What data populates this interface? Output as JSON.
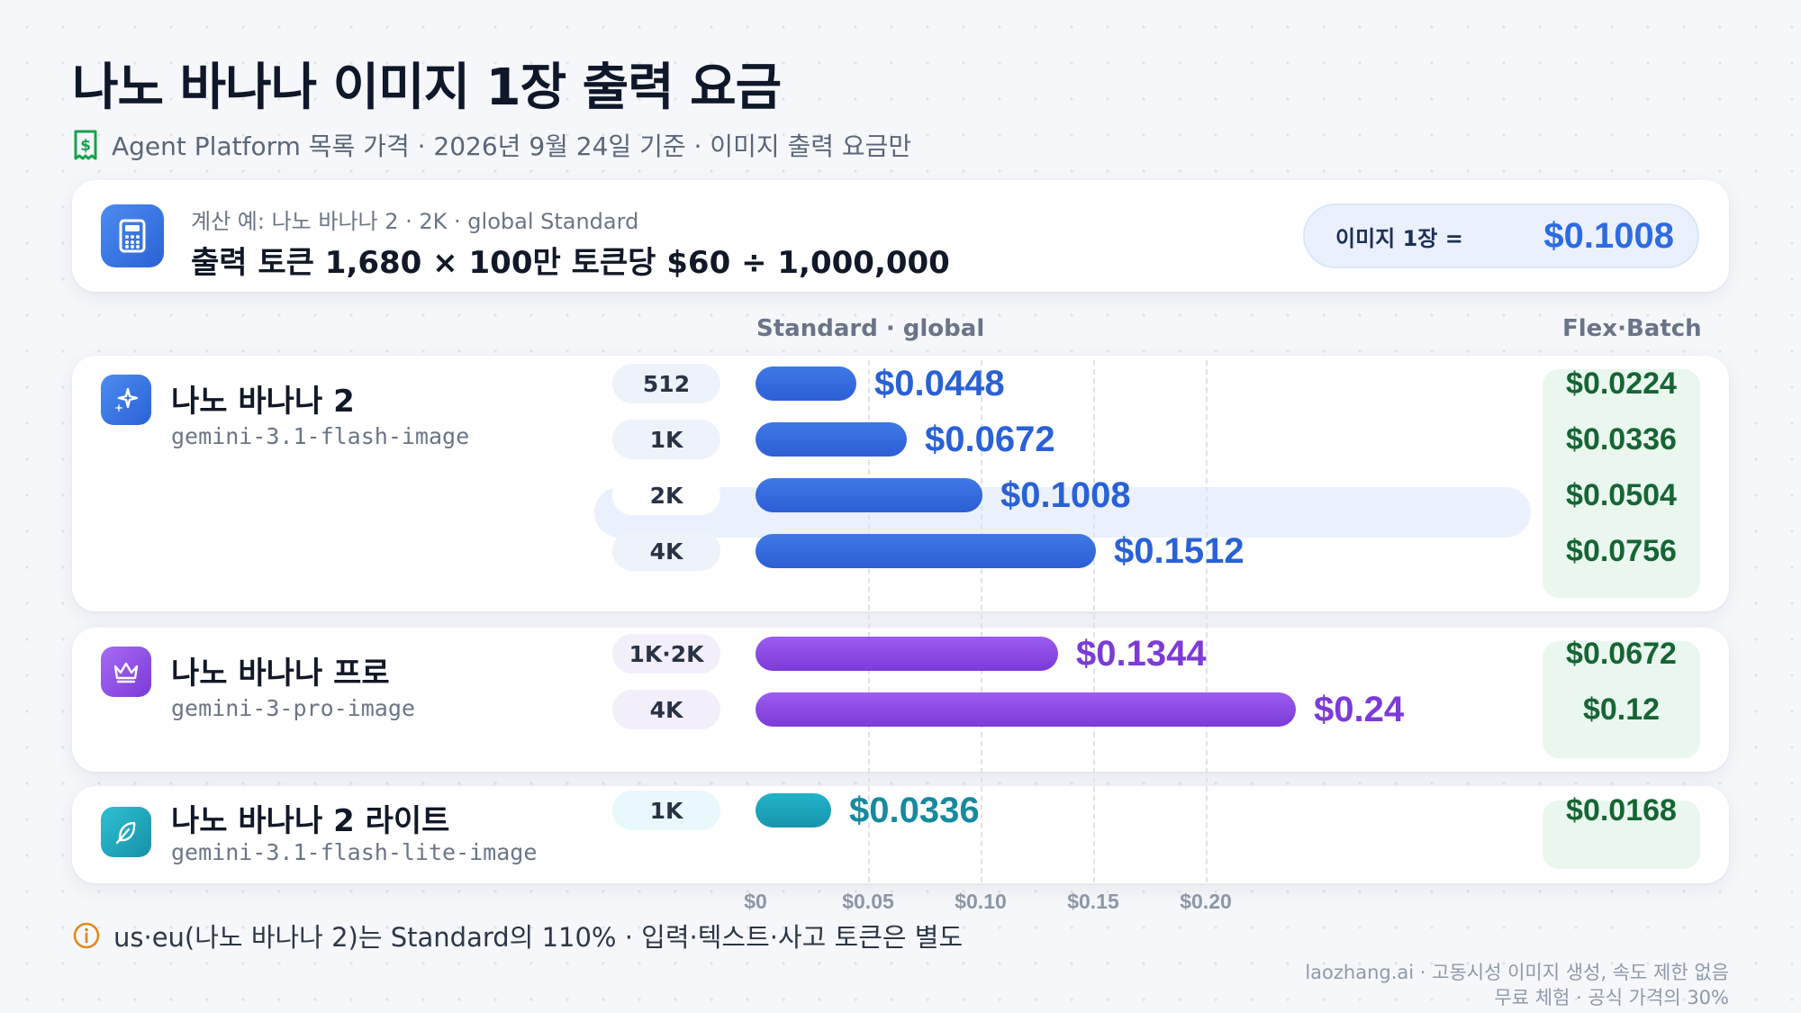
{
  "header": {
    "title": "나노 바나나 이미지 1장 출력 요금",
    "subtitle": "Agent Platform 목록 가격 · 2026년 9월 24일 기준 · 이미지 출력 요금만",
    "subtitle_icon": "receipt-dollar-icon"
  },
  "calc": {
    "icon": "calculator-icon",
    "label": "계산 예: 나노 바나나 2 · 2K · global Standard",
    "formula": "출력 토큰 1,680 × 100만 토큰당 $60 ÷ 1,000,000",
    "result_label": "이미지 1장 =",
    "result_value": "$0.1008"
  },
  "columns": {
    "standard": "Standard · global",
    "flex": "Flex·Batch"
  },
  "chart_data": {
    "type": "bar",
    "orientation": "horizontal",
    "xlim": [
      0,
      0.25
    ],
    "ticks": [
      {
        "value": 0,
        "label": "$0"
      },
      {
        "value": 0.05,
        "label": "$0.05"
      },
      {
        "value": 0.1,
        "label": "$0.10"
      },
      {
        "value": 0.15,
        "label": "$0.15"
      },
      {
        "value": 0.2,
        "label": "$0.20"
      }
    ],
    "grid": true,
    "models": [
      {
        "name": "나노 바나나 2",
        "id": "gemini-3.1-flash-image",
        "icon": "sparkles-icon",
        "color": "#3f78e6",
        "color2": "#2c5fd4",
        "label_color": "#2a61d6",
        "pill_bg": "#eef2fa",
        "rows": [
          {
            "resolution": "512",
            "standard": 0.0448,
            "standard_label": "$0.0448",
            "flex_label": "$0.0224",
            "highlight": false
          },
          {
            "resolution": "1K",
            "standard": 0.0672,
            "standard_label": "$0.0672",
            "flex_label": "$0.0336",
            "highlight": false
          },
          {
            "resolution": "2K",
            "standard": 0.1008,
            "standard_label": "$0.1008",
            "flex_label": "$0.0504",
            "highlight": true
          },
          {
            "resolution": "4K",
            "standard": 0.1512,
            "standard_label": "$0.1512",
            "flex_label": "$0.0756",
            "highlight": false
          }
        ]
      },
      {
        "name": "나노 바나나 프로",
        "id": "gemini-3-pro-image",
        "icon": "crown-icon",
        "color": "#9b5cf0",
        "color2": "#7c3ad8",
        "label_color": "#7c3ad8",
        "pill_bg": "#f2eefa",
        "rows": [
          {
            "resolution": "1K·2K",
            "standard": 0.1344,
            "standard_label": "$0.1344",
            "flex_label": "$0.0672",
            "highlight": false
          },
          {
            "resolution": "4K",
            "standard": 0.24,
            "standard_label": "$0.24",
            "flex_label": "$0.12",
            "highlight": false
          }
        ]
      },
      {
        "name": "나노 바나나 2 라이트",
        "id": "gemini-3.1-flash-lite-image",
        "icon": "feather-icon",
        "color": "#22b3c9",
        "color2": "#1795ad",
        "label_color": "#168a9e",
        "pill_bg": "#e9f8fb",
        "rows": [
          {
            "resolution": "1K",
            "standard": 0.0336,
            "standard_label": "$0.0336",
            "flex_label": "$0.0168",
            "highlight": false
          }
        ]
      }
    ]
  },
  "footer": {
    "note_icon": "info-icon",
    "note": "us·eu(나노 바나나 2)는 Standard의 110% · 입력·텍스트·사고 토큰은 별도",
    "credit_line1": "laozhang.ai · 고동시성 이미지 생성, 속도 제한 없음",
    "credit_line2": "무료 체험 · 공식 가격의 30%"
  }
}
